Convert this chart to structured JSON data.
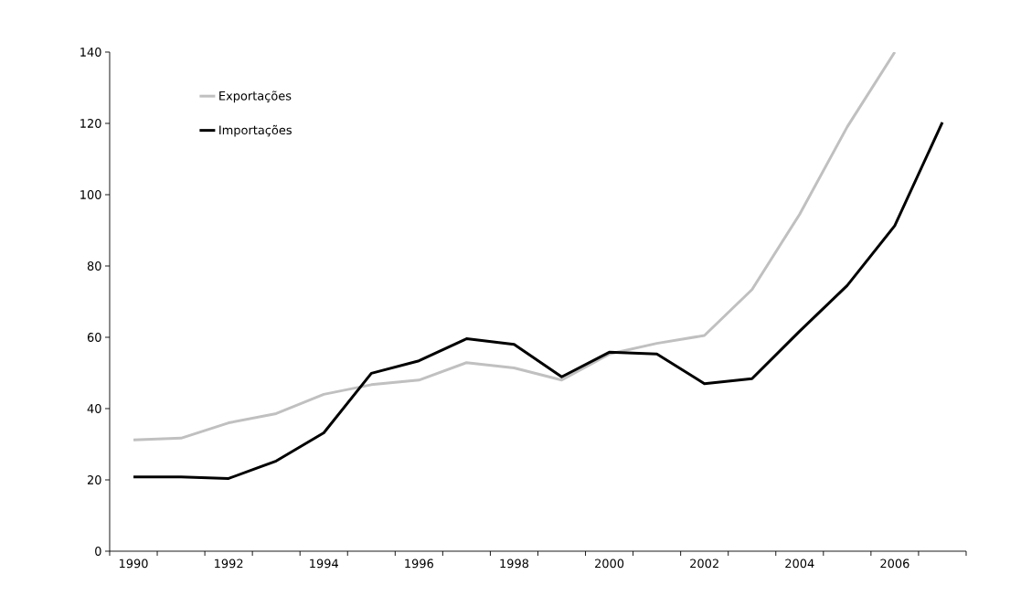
{
  "chart_data": {
    "type": "line",
    "categories": [
      "1990",
      null,
      "1992",
      null,
      "1994",
      null,
      "1996",
      null,
      "1998",
      null,
      "2000",
      null,
      "2002",
      null,
      "2004",
      null,
      "2006",
      null
    ],
    "series": [
      {
        "name": "Exportações",
        "color": "#c0c0c0",
        "values": [
          31.2,
          31.7,
          36,
          38.6,
          44,
          46.7,
          48,
          52.9,
          51.4,
          48,
          55.3,
          58.3,
          60.5,
          73.4,
          94.5,
          119,
          140,
          null
        ]
      },
      {
        "name": "Importações",
        "color": "#000000",
        "values": [
          20.8,
          20.8,
          20.4,
          25.3,
          33.2,
          49.9,
          53.4,
          59.6,
          58,
          48.9,
          55.8,
          55.3,
          47,
          48.4,
          61.7,
          74.5,
          91.3,
          120.3
        ]
      }
    ],
    "ylim": [
      0,
      140
    ],
    "yticks": [
      0,
      20,
      40,
      60,
      80,
      100,
      120,
      140
    ],
    "grid": false,
    "legend": "top left",
    "marker": "none",
    "line_style": "solid"
  }
}
